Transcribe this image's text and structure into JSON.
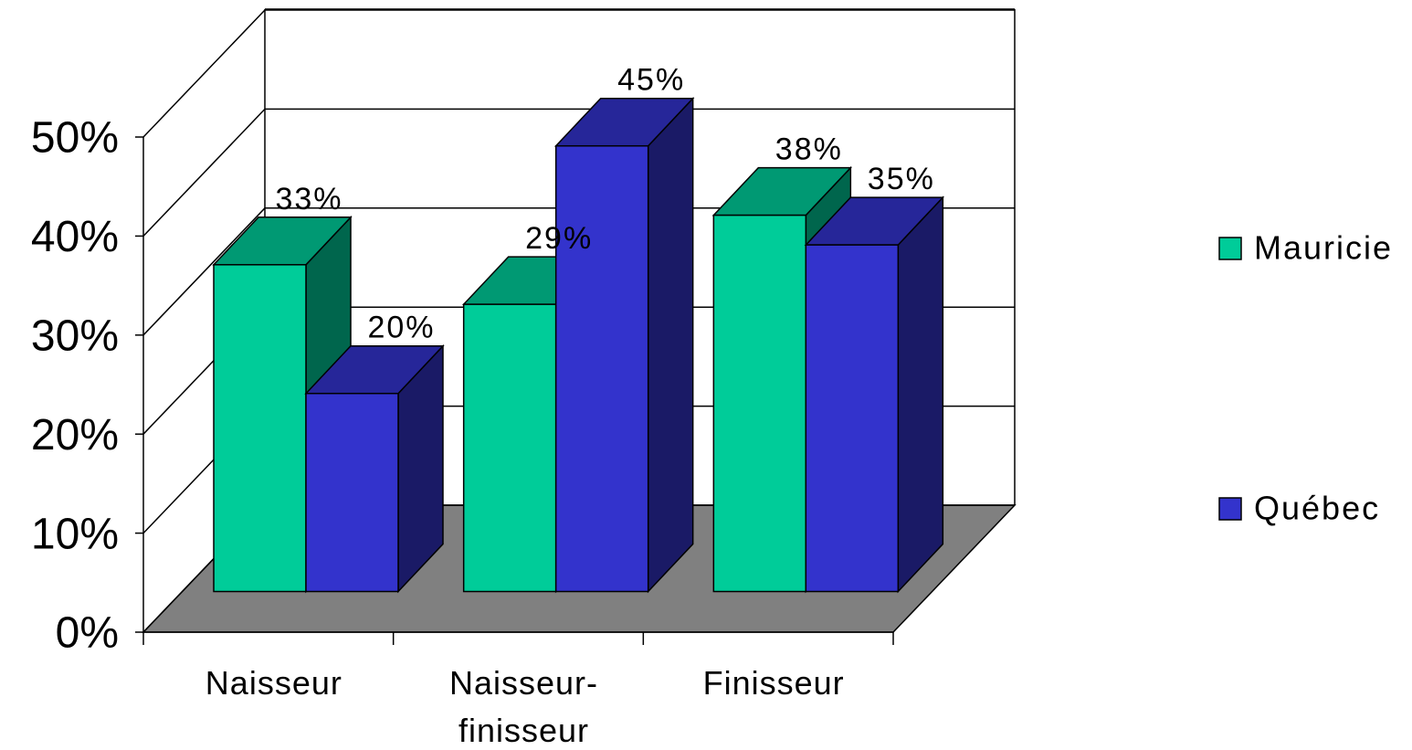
{
  "chart_data": {
    "type": "bar3d",
    "categories": [
      "Naisseur",
      "Naisseur-finisseur",
      "Finisseur"
    ],
    "series": [
      {
        "name": "Mauricie",
        "color": "#00cc99",
        "values": [
          33,
          29,
          38
        ],
        "value_labels": [
          "33%",
          "29%",
          "38%"
        ]
      },
      {
        "name": "Québec",
        "color": "#3333cc",
        "values": [
          20,
          45,
          35
        ],
        "value_labels": [
          "20%",
          "45%",
          "35%"
        ]
      }
    ],
    "ylim": [
      0,
      50
    ],
    "yticks": [
      {
        "value": 0,
        "label": "0%"
      },
      {
        "value": 10,
        "label": "10%"
      },
      {
        "value": 20,
        "label": "20%"
      },
      {
        "value": 30,
        "label": "30%"
      },
      {
        "value": 40,
        "label": "40%"
      },
      {
        "value": 50,
        "label": "50%"
      }
    ],
    "grid": true,
    "legend": "right"
  }
}
